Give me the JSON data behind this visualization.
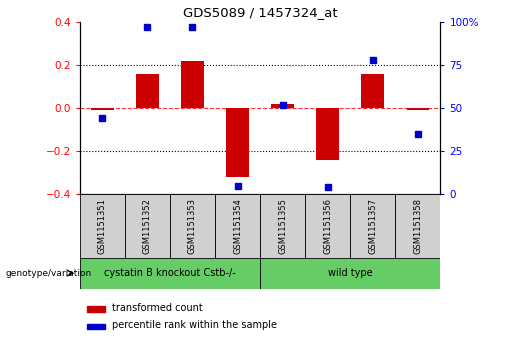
{
  "title": "GDS5089 / 1457324_at",
  "samples": [
    "GSM1151351",
    "GSM1151352",
    "GSM1151353",
    "GSM1151354",
    "GSM1151355",
    "GSM1151356",
    "GSM1151357",
    "GSM1151358"
  ],
  "transformed_count": [
    -0.01,
    0.16,
    0.22,
    -0.32,
    0.02,
    -0.24,
    0.16,
    -0.01
  ],
  "percentile_rank": [
    44,
    97,
    97,
    5,
    52,
    4,
    78,
    35
  ],
  "group1_label": "cystatin B knockout Cstb-/-",
  "group1_count": 4,
  "group2_label": "wild type",
  "group2_count": 4,
  "green_color": "#66cc66",
  "bar_color": "#cc0000",
  "dot_color": "#0000cc",
  "ylim_left": [
    -0.4,
    0.4
  ],
  "ylim_right": [
    0,
    100
  ],
  "yticks_left": [
    -0.4,
    -0.2,
    0.0,
    0.2,
    0.4
  ],
  "yticks_right": [
    0,
    25,
    50,
    75,
    100
  ],
  "ytick_labels_right": [
    "0",
    "25",
    "50",
    "75",
    "100%"
  ],
  "legend_red_label": "transformed count",
  "legend_blue_label": "percentile rank within the sample",
  "genotype_label": "genotype/variation"
}
